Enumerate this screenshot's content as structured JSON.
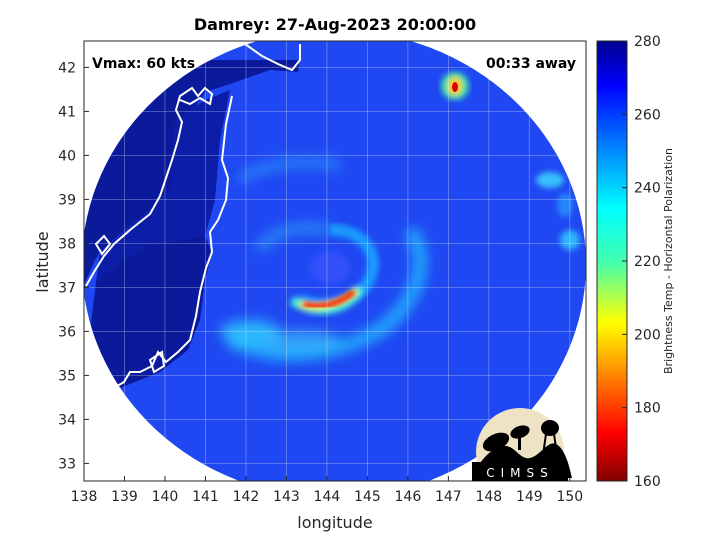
{
  "chart_data": {
    "type": "heatmap",
    "title": "Damrey: 27-Aug-2023 20:00:00",
    "xlabel": "longitude",
    "ylabel": "latitude",
    "xlim": [
      138,
      150.4
    ],
    "ylim": [
      32.6,
      42.6
    ],
    "xticks": [
      138,
      139,
      140,
      141,
      142,
      143,
      144,
      145,
      146,
      147,
      148,
      149,
      150
    ],
    "yticks": [
      33,
      34,
      35,
      36,
      37,
      38,
      39,
      40,
      41,
      42
    ],
    "grid": true,
    "annotations": {
      "vmax": "Vmax: 60 kts",
      "away": "00:33 away"
    },
    "colorbar": {
      "label": "Brightness Temp - Horizontal Polarization",
      "min": 160,
      "max": 280,
      "ticks": [
        160,
        180,
        200,
        220,
        240,
        260,
        280
      ],
      "colormap": "jet"
    },
    "storm_center": {
      "lon": 144.0,
      "lat": 37.2
    },
    "swath": {
      "center_lon": 144.2,
      "center_lat": 37.6,
      "radius_deg_lat": 5.3
    },
    "logo_text": "CIMSS"
  }
}
